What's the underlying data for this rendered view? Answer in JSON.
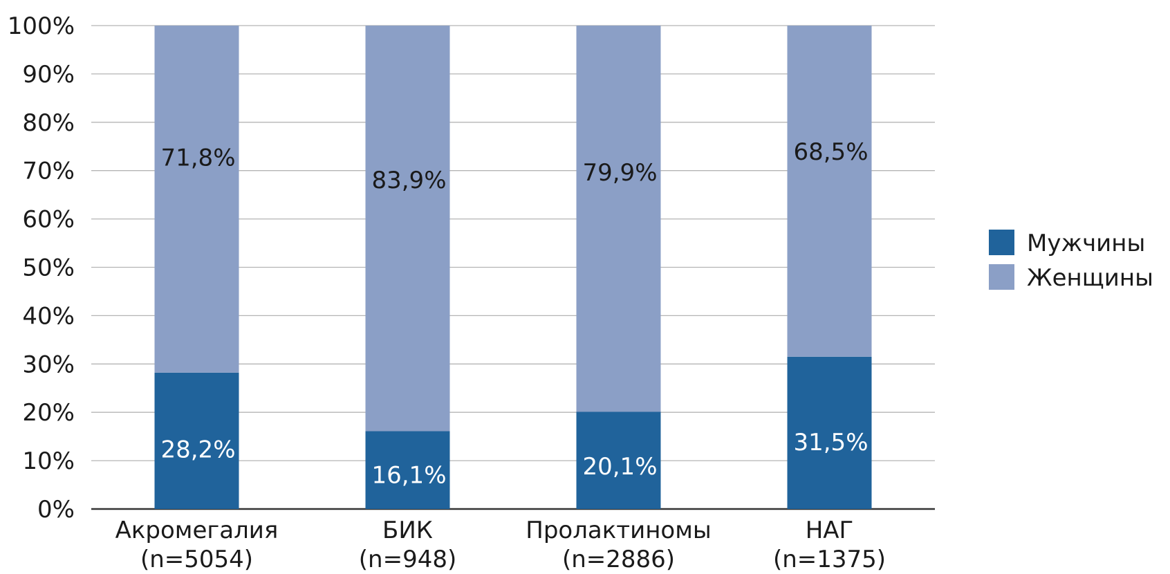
{
  "chart_data": {
    "type": "bar",
    "stacked": true,
    "categories": [
      "Акромегалия",
      "БИК",
      "Пролактиномы",
      "НАГ"
    ],
    "category_counts": [
      "(n=5054)",
      "(n=948)",
      "(n=2886)",
      "(n=1375)"
    ],
    "series": [
      {
        "name": "Мужчины",
        "values": [
          28.2,
          16.1,
          20.1,
          31.5
        ],
        "labels": [
          "28,2%",
          "16,1%",
          "20,1%",
          "31,5%"
        ],
        "color": "#20639B"
      },
      {
        "name": "Женщины",
        "values": [
          71.8,
          83.9,
          79.9,
          68.5
        ],
        "labels": [
          "71,8%",
          "83,9%",
          "79,9%",
          "68,5%"
        ],
        "color": "#8B9FC6"
      }
    ],
    "ylim": [
      0,
      100
    ],
    "yticks": [
      "0%",
      "10%",
      "20%",
      "30%",
      "40%",
      "50%",
      "60%",
      "70%",
      "80%",
      "90%",
      "100%"
    ],
    "grid": true,
    "legend_position": "right",
    "title": "",
    "xlabel": "",
    "ylabel": ""
  }
}
